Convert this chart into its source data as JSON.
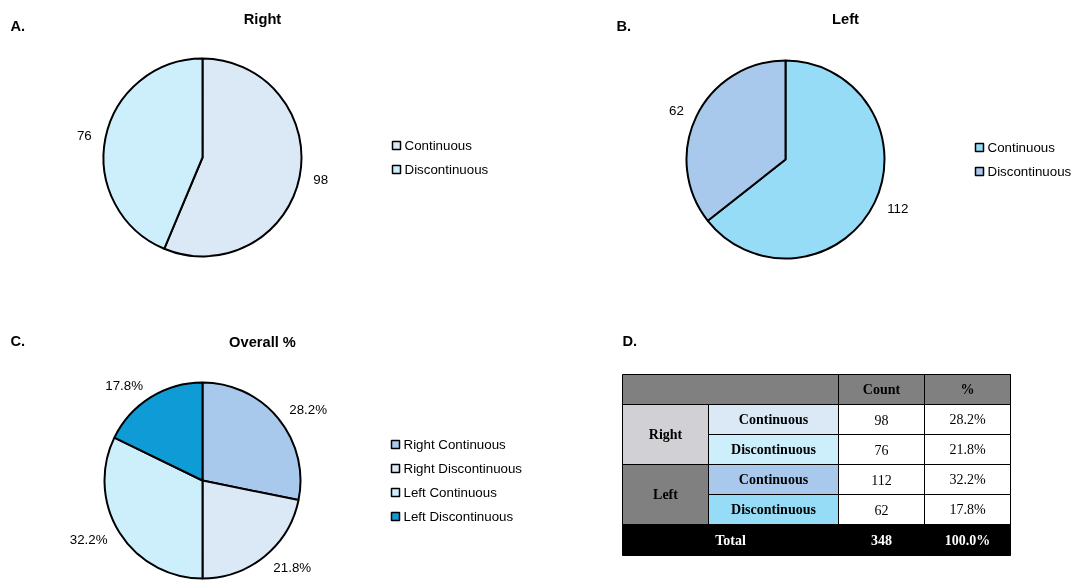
{
  "chart_data": [
    {
      "type": "pie",
      "title": "Right",
      "annotations": [
        "A."
      ],
      "categories": [
        "Continuous",
        "Discontinuous"
      ],
      "values": [
        98,
        76
      ],
      "colors": [
        "#dbe9f7",
        "#cdeffc"
      ],
      "data_labels": true,
      "legend": "right"
    },
    {
      "type": "pie",
      "title": "Left",
      "annotations": [
        "B."
      ],
      "categories": [
        "Continuous",
        "Discontinuous"
      ],
      "values": [
        112,
        62
      ],
      "colors": [
        "#97dcf6",
        "#a9c9ec"
      ],
      "data_labels": true,
      "legend": "right"
    },
    {
      "type": "pie",
      "title": "Overall %",
      "annotations": [
        "C."
      ],
      "categories": [
        "Right Continuous",
        "Right Discontinuous",
        "Left Continuous",
        "Left Discontinuous"
      ],
      "values": [
        28.2,
        21.8,
        32.2,
        17.8
      ],
      "colors": [
        "#a9c9ec",
        "#dbe9f7",
        "#cdeffc",
        "#0f9bd5"
      ],
      "value_labels": [
        "28.2%",
        "21.8%",
        "32.2%",
        "17.8%"
      ],
      "legend": "right"
    },
    {
      "type": "other",
      "title": "D.",
      "cells": [
        [
          null,
          null,
          "Count",
          "%"
        ],
        [
          "Right",
          "Continuous",
          "98",
          "28.2%"
        ],
        [
          null,
          "Discontinuous",
          "76",
          "21.8%"
        ],
        [
          "Left",
          "Continuous",
          "112",
          "32.2%"
        ],
        [
          null,
          "Discontinuous",
          "62",
          "17.8%"
        ],
        [
          "Total",
          null,
          "348",
          "100.0%"
        ]
      ],
      "colors": [
        [
          "#808080",
          "#808080",
          "#808080",
          "#808080"
        ],
        [
          "#d0d0d5",
          "#dbe9f7",
          "#ffffff",
          "#ffffff"
        ],
        [
          "#d0d0d5",
          "#cdeffc",
          "#ffffff",
          "#ffffff"
        ],
        [
          "#808080",
          "#a9c9ec",
          "#ffffff",
          "#ffffff"
        ],
        [
          "#808080",
          "#97dcf6",
          "#ffffff",
          "#ffffff"
        ],
        [
          "#000000",
          "#000000",
          "#000000",
          "#000000"
        ]
      ]
    }
  ]
}
